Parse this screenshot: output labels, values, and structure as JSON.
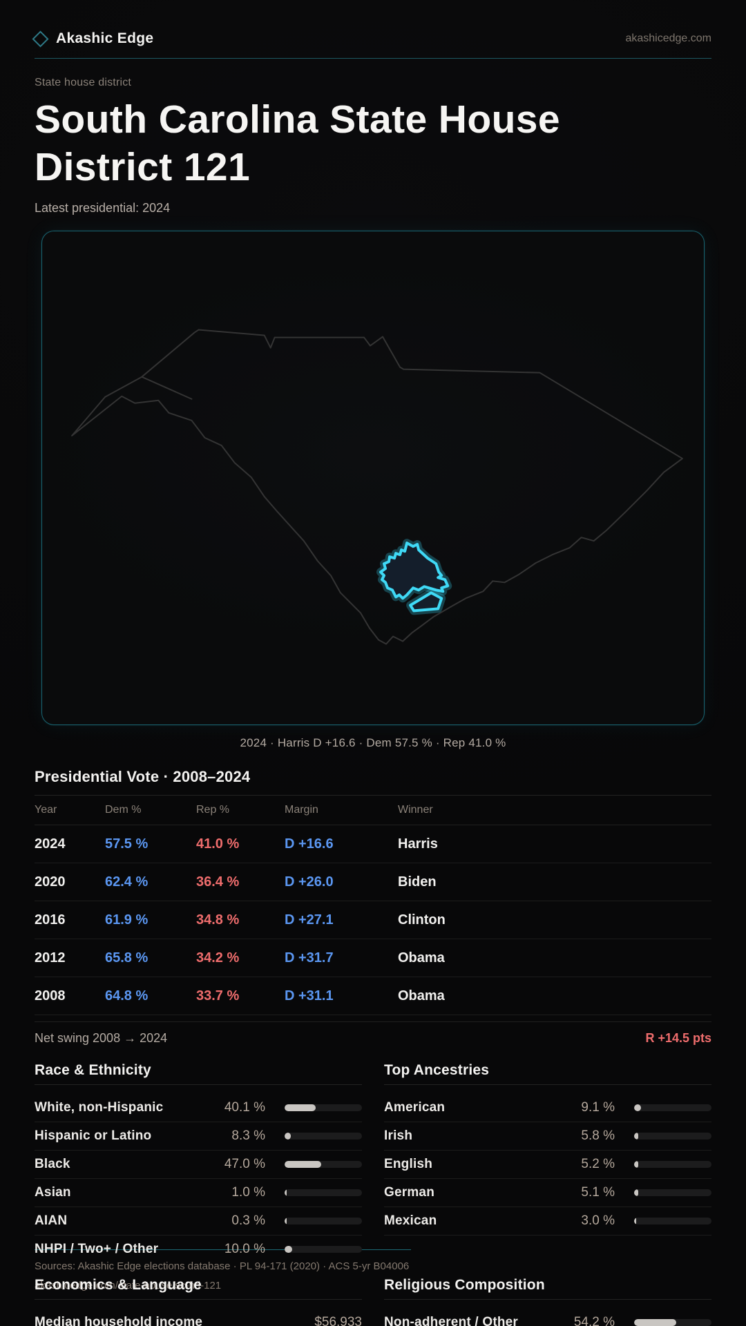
{
  "brand": {
    "name": "Akashic Edge",
    "domain": "akashicedge.com"
  },
  "hero": {
    "eyebrow": "State house district",
    "title": "South Carolina State House District 121",
    "subtitle": "Latest presidential: 2024"
  },
  "map": {
    "caption": "2024 · Harris D +16.6 · Dem 57.5 % · Rep 41.0 %",
    "region_name": "South Carolina",
    "highlight_color": "#3fd9f6"
  },
  "vote": {
    "heading": "Presidential Vote · 2008–2024",
    "columns": [
      "Year",
      "Dem %",
      "Rep %",
      "Margin",
      "Winner"
    ],
    "rows": [
      {
        "year": "2024",
        "dem": "57.5 %",
        "rep": "41.0 %",
        "margin": "D +16.6",
        "winner": "Harris"
      },
      {
        "year": "2020",
        "dem": "62.4 %",
        "rep": "36.4 %",
        "margin": "D +26.0",
        "winner": "Biden"
      },
      {
        "year": "2016",
        "dem": "61.9 %",
        "rep": "34.8 %",
        "margin": "D +27.1",
        "winner": "Clinton"
      },
      {
        "year": "2012",
        "dem": "65.8 %",
        "rep": "34.2 %",
        "margin": "D +31.7",
        "winner": "Obama"
      },
      {
        "year": "2008",
        "dem": "64.8 %",
        "rep": "33.7 %",
        "margin": "D +31.1",
        "winner": "Obama"
      }
    ],
    "net_swing": {
      "label": "Net swing 2008 → 2024",
      "value": "R +14.5 pts"
    }
  },
  "sections": [
    {
      "title": "Race & Ethnicity",
      "rows": [
        {
          "label": "White, non-Hispanic",
          "value": "40.1 %",
          "pct": 40.1
        },
        {
          "label": "Hispanic or Latino",
          "value": "8.3 %",
          "pct": 8.3
        },
        {
          "label": "Black",
          "value": "47.0 %",
          "pct": 47.0
        },
        {
          "label": "Asian",
          "value": "1.0 %",
          "pct": 1.0
        },
        {
          "label": "AIAN",
          "value": "0.3 %",
          "pct": 0.3
        },
        {
          "label": "NHPI / Two+ / Other",
          "value": "10.0 %",
          "pct": 10.0
        }
      ]
    },
    {
      "title": "Top Ancestries",
      "rows": [
        {
          "label": "American",
          "value": "9.1 %",
          "pct": 9.1
        },
        {
          "label": "Irish",
          "value": "5.8 %",
          "pct": 5.8
        },
        {
          "label": "English",
          "value": "5.2 %",
          "pct": 5.2
        },
        {
          "label": "German",
          "value": "5.1 %",
          "pct": 5.1
        },
        {
          "label": "Mexican",
          "value": "3.0 %",
          "pct": 3.0
        }
      ]
    },
    {
      "title": "Economics & Language",
      "rows": [
        {
          "label": "Median household income",
          "value": "$56,933",
          "pct": null
        }
      ]
    },
    {
      "title": "Religious Composition",
      "rows": [
        {
          "label": "Non-adherent / Other",
          "value": "54.2 %",
          "pct": 54.2
        }
      ]
    }
  ],
  "footer": {
    "sources": "Sources: Akashic Edge elections database · PL 94-171 (2020) · ACS 5-yr B04006",
    "url": "akashicedge.com/state-house/sc-hd-121"
  },
  "colors": {
    "dem": "#5b97f2",
    "rep": "#ef6d6d",
    "accent": "#3fd9f6",
    "bar_fill": "#c9c6c2"
  }
}
